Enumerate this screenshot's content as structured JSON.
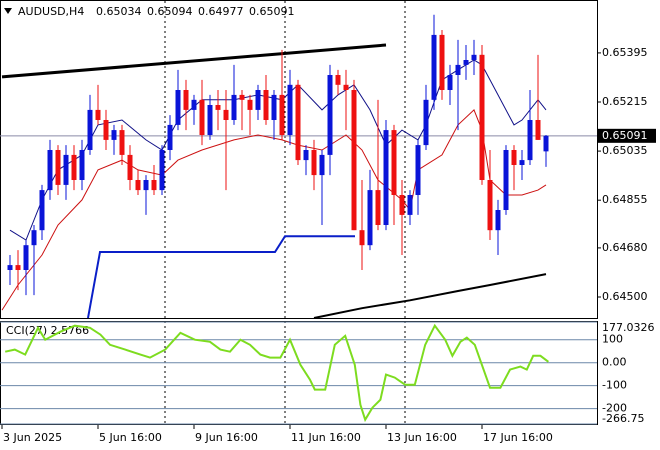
{
  "chart_data": {
    "type": "candlestick",
    "symbol": "AUDUSD,H4",
    "up_color": "#0a14d8",
    "down_color": "#ee1111",
    "xlim": [
      -1.25,
      73.375
    ],
    "xticks": [
      {
        "value": -1,
        "label": "3 Jun 2025"
      },
      {
        "value": 11,
        "label": "5 Jun 16:00"
      },
      {
        "value": 23,
        "label": "9 Jun 16:00"
      },
      {
        "value": 35,
        "label": "11 Jun 16:00"
      },
      {
        "value": 47,
        "label": "13 Jun 16:00"
      },
      {
        "value": 59,
        "label": "17 Jun 16:00"
      }
    ],
    "ylim": [
      0.64423,
      0.65589
    ],
    "yticks": [
      0.65395,
      0.65215,
      0.65035,
      0.64855,
      {
        "value": 0.6468,
        "label": "0.64680"
      },
      {
        "value": 0.645,
        "label": "0.64500"
      }
    ],
    "open": [
      0.64599,
      0.64617,
      0.64599,
      0.6469,
      0.64745,
      0.64892,
      0.65039,
      0.64911,
      0.65021,
      0.64929,
      0.65039,
      0.65186,
      0.65149,
      0.65076,
      0.65112,
      0.65021,
      0.64929,
      0.64892,
      0.64929,
      0.64892,
      0.65039,
      0.65131,
      0.65259,
      0.65186,
      0.65223,
      0.65094,
      0.65204,
      0.65186,
      0.65149,
      0.65241,
      0.65223,
      0.65186,
      0.65259,
      0.65149,
      0.65241,
      0.65094,
      0.65278,
      0.65002,
      0.65039,
      0.64947,
      0.65021,
      0.65314,
      0.65278,
      0.65259,
      0.64745,
      0.6469,
      0.64892,
      0.64764,
      0.65112,
      0.64874,
      0.64801,
      0.64874,
      0.65057,
      0.65223,
      0.65461,
      0.65259,
      0.65314,
      0.65351,
      0.65369,
      0.65388,
      0.64929,
      0.64745,
      0.64819,
      0.65039,
      0.64984,
      0.65002,
      0.65149,
      0.65034
    ],
    "high": [
      0.64654,
      0.64672,
      0.64709,
      0.64764,
      0.64911,
      0.65076,
      0.65057,
      0.65057,
      0.65057,
      0.65076,
      0.65241,
      0.65278,
      0.65186,
      0.65131,
      0.65131,
      0.65057,
      0.64966,
      0.64947,
      0.64984,
      0.65057,
      0.65167,
      0.65333,
      0.65296,
      0.65241,
      0.65296,
      0.65241,
      0.65259,
      0.65259,
      0.65351,
      0.65259,
      0.65241,
      0.65278,
      0.65314,
      0.65259,
      0.65406,
      0.65333,
      0.65296,
      0.65057,
      0.65076,
      0.65039,
      0.65351,
      0.65333,
      0.65333,
      0.65296,
      0.64929,
      0.64966,
      0.65223,
      0.65149,
      0.65131,
      0.64929,
      0.64892,
      0.65076,
      0.65278,
      0.65535,
      0.65479,
      0.65351,
      0.65443,
      0.65424,
      0.65443,
      0.65424,
      0.65039,
      0.64856,
      0.65057,
      0.65057,
      0.65039,
      0.65259,
      0.65388,
      0.65094
    ],
    "low": [
      0.64544,
      0.64525,
      0.64507,
      0.64507,
      0.64709,
      0.64856,
      0.64874,
      0.64856,
      0.64892,
      0.64892,
      0.65021,
      0.65131,
      0.65039,
      0.65021,
      0.64984,
      0.64892,
      0.64874,
      0.64801,
      0.64874,
      0.64874,
      0.65002,
      0.65112,
      0.65112,
      0.65131,
      0.65057,
      0.65076,
      0.65112,
      0.64892,
      0.65131,
      0.65112,
      0.65094,
      0.65149,
      0.65131,
      0.65076,
      0.65076,
      0.65057,
      0.64984,
      0.64947,
      0.64892,
      0.64764,
      0.64947,
      0.65241,
      0.65112,
      0.64745,
      0.64599,
      0.64672,
      0.64745,
      0.64745,
      0.64764,
      0.64654,
      0.64764,
      0.64801,
      0.65039,
      0.65186,
      0.65223,
      0.65204,
      0.65112,
      0.65296,
      0.65314,
      0.64911,
      0.64709,
      0.64654,
      0.64801,
      0.64892,
      0.64929,
      0.64984,
      0.65076,
      0.64977
    ],
    "close": [
      0.64617,
      0.64599,
      0.6469,
      0.64745,
      0.64892,
      0.65039,
      0.64911,
      0.65021,
      0.64929,
      0.65039,
      0.65186,
      0.65149,
      0.65076,
      0.65112,
      0.65021,
      0.64929,
      0.64892,
      0.64929,
      0.64892,
      0.65039,
      0.65131,
      0.65259,
      0.65186,
      0.65223,
      0.65094,
      0.65204,
      0.65186,
      0.65149,
      0.65241,
      0.65223,
      0.65186,
      0.65259,
      0.65149,
      0.65241,
      0.65094,
      0.65278,
      0.65002,
      0.65039,
      0.64947,
      0.65021,
      0.65314,
      0.65278,
      0.65259,
      0.64745,
      0.6469,
      0.64892,
      0.64764,
      0.65112,
      0.64874,
      0.64801,
      0.64874,
      0.65057,
      0.65223,
      0.65461,
      0.65259,
      0.65314,
      0.65351,
      0.65369,
      0.65388,
      0.64929,
      0.64745,
      0.64819,
      0.65039,
      0.64984,
      0.65002,
      0.65149,
      0.65076,
      0.65091
    ],
    "lines": [
      {
        "color": "#111188",
        "width": 1,
        "x": [
          0,
          2,
          4,
          6,
          9,
          11,
          14,
          17,
          19,
          21,
          24,
          28,
          31,
          34,
          36,
          39,
          41,
          43,
          45,
          47,
          49,
          51,
          52,
          54,
          56,
          58,
          59,
          61,
          63,
          64,
          66,
          67
        ],
        "values": [
          0.64745,
          0.64709,
          0.64856,
          0.64966,
          0.65021,
          0.65131,
          0.65149,
          0.65076,
          0.65039,
          0.65149,
          0.65223,
          0.65223,
          0.65241,
          0.65223,
          0.65278,
          0.65186,
          0.65241,
          0.65278,
          0.65186,
          0.65057,
          0.65112,
          0.65076,
          0.65131,
          0.65296,
          0.65333,
          0.65369,
          0.65351,
          0.65241,
          0.65131,
          0.65149,
          0.65223,
          0.65186
        ]
      },
      {
        "color": "#cc1111",
        "width": 1,
        "x": [
          -1,
          1,
          4,
          6,
          9,
          11,
          14,
          16,
          19,
          21,
          24,
          28,
          31,
          34,
          36,
          39,
          42,
          44,
          46,
          49,
          50,
          51,
          54,
          56,
          58,
          59,
          60,
          62,
          64,
          66,
          67
        ],
        "values": [
          0.64452,
          0.64544,
          0.64654,
          0.64764,
          0.64856,
          0.64966,
          0.65002,
          0.64966,
          0.64947,
          0.65002,
          0.65039,
          0.65076,
          0.65094,
          0.65076,
          0.65057,
          0.65039,
          0.65094,
          0.65039,
          0.64929,
          0.64856,
          0.64819,
          0.64966,
          0.65021,
          0.65131,
          0.65186,
          0.65112,
          0.64929,
          0.64874,
          0.64874,
          0.64892,
          0.64911
        ]
      },
      {
        "color": "#000000",
        "width": 3,
        "x": [
          -1,
          47
        ],
        "values": [
          0.65307,
          0.65424
        ]
      },
      {
        "color": "#000000",
        "width": 2,
        "x": [
          38,
          44,
          50,
          56,
          60,
          67
        ],
        "values": [
          0.64423,
          0.64459,
          0.64488,
          0.64522,
          0.64544,
          0.64584
        ]
      },
      {
        "color": "#0a1fc8",
        "width": 2,
        "x": [
          9.75,
          11.25,
          33.125,
          34.375,
          43.125
        ],
        "values": [
          0.64423,
          0.64665,
          0.64665,
          0.64723,
          0.64723
        ]
      }
    ],
    "cci": {
      "label": "CCI(27) 2.5766",
      "color": "#7ddc1f",
      "ylim": [
        -266.75,
        177.0326
      ],
      "yticks": [
        177.0326,
        100,
        {
          "value": 0,
          "label": "0.00"
        },
        -100,
        -200,
        -266.75
      ],
      "x": [
        -0.6,
        0.6,
        1.9,
        3.5,
        4.4,
        6.3,
        8.1,
        10,
        11.3,
        12.5,
        14.4,
        16.3,
        17.5,
        19.4,
        21.3,
        23.1,
        25,
        26.3,
        27.5,
        28.8,
        30,
        31.3,
        32.5,
        33.8,
        35,
        36.3,
        37.5,
        38.1,
        39.4,
        40.6,
        41.9,
        43.1,
        43.8,
        44.4,
        45.3,
        46.3,
        47,
        48.1,
        49.4,
        50.6,
        51.9,
        53.1,
        54.4,
        55.3,
        56.3,
        57.1,
        58.1,
        60,
        61.3,
        62.5,
        63.8,
        64.6,
        65.4,
        66.3,
        67.3
      ],
      "values": [
        48,
        57,
        35,
        152,
        100,
        135,
        161,
        152,
        122,
        78,
        57,
        35,
        22,
        57,
        130,
        100,
        91,
        57,
        48,
        100,
        78,
        35,
        22,
        22,
        100,
        -9,
        -74,
        -117,
        -117,
        78,
        117,
        -9,
        -183,
        -248,
        -196,
        -161,
        -52,
        -65,
        -96,
        -96,
        78,
        161,
        100,
        30,
        91,
        109,
        78,
        -109,
        -109,
        -30,
        -17,
        -30,
        30,
        30,
        4
      ]
    }
  }
}
